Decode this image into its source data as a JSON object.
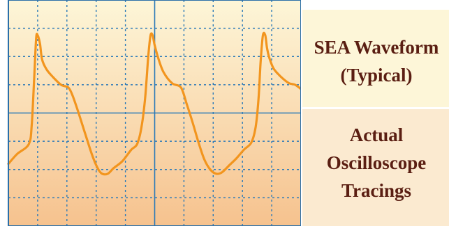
{
  "colors": {
    "screen_top": "#fdf6d8",
    "screen_bottom": "#f6c28e",
    "grid_line": "#2b7ab8",
    "trace": "#f2951e",
    "frame": "#2b6fa8",
    "caption_top_bg": "#fdf6d8",
    "caption_bottom_bg": "#fbead0",
    "caption_text": "#5a1e12"
  },
  "caption": {
    "title_line1": "SEA Waveform",
    "title_line2": "(Typical)",
    "note_line1": "Actual",
    "note_line2": "Oscilloscope",
    "note_line3": "Tracings"
  },
  "chart_data": {
    "type": "line",
    "title": "",
    "xlabel": "",
    "ylabel": "",
    "grid": true,
    "grid_divisions": {
      "x": 10,
      "y": 8
    },
    "xlim": [
      0,
      10
    ],
    "ylim": [
      -4,
      4
    ],
    "series": [
      {
        "x": [
          0,
          0.3,
          0.7,
          0.8,
          0.88,
          0.95,
          1.0,
          1.08,
          1.15,
          1.3,
          1.5,
          1.8,
          2.05,
          2.2,
          2.4,
          2.6,
          2.85,
          3.05,
          3.2,
          3.4,
          3.6,
          3.9,
          4.2,
          4.4,
          4.55,
          4.68,
          4.78,
          4.86,
          4.93,
          5.0,
          5.12,
          5.3,
          5.6,
          5.9,
          6.1,
          6.3,
          6.5,
          6.7,
          6.9,
          7.1,
          7.3,
          7.55,
          7.8,
          8.05,
          8.3,
          8.45,
          8.55,
          8.62,
          8.7,
          8.78,
          8.84,
          8.92,
          9.05,
          9.2,
          9.4,
          9.6,
          9.8,
          10.0
        ],
        "y": [
          -1.8,
          -1.45,
          -1.1,
          -0.4,
          1.2,
          2.65,
          2.75,
          2.45,
          1.9,
          1.55,
          1.3,
          1.0,
          0.9,
          0.6,
          0,
          -0.65,
          -1.45,
          -1.95,
          -2.15,
          -2.15,
          -1.95,
          -1.7,
          -1.3,
          -1.1,
          -0.5,
          0.6,
          2.0,
          2.75,
          2.75,
          2.4,
          1.95,
          1.45,
          1.05,
          0.9,
          0.3,
          -0.35,
          -1.05,
          -1.65,
          -2.0,
          -2.15,
          -2.1,
          -1.85,
          -1.6,
          -1.3,
          -1.05,
          -0.5,
          0.5,
          1.8,
          2.75,
          2.75,
          2.3,
          1.95,
          1.6,
          1.4,
          1.2,
          1.05,
          1.0,
          0.85
        ]
      }
    ]
  }
}
